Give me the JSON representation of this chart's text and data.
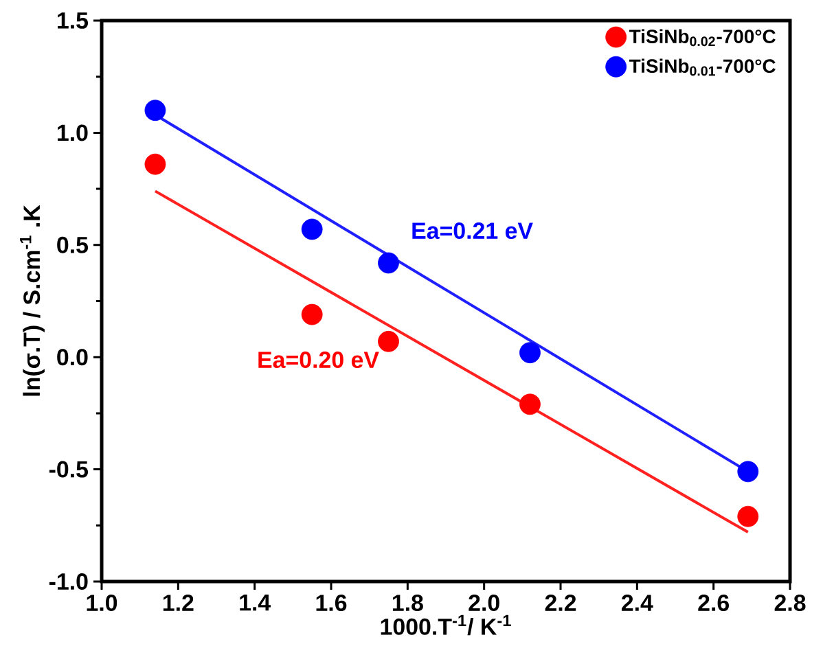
{
  "chart_data": {
    "type": "scatter",
    "xlabel": "1000.T$^{-1}$/ K$^{-1}$",
    "ylabel": "ln(σ.T) / S.cm$^{-1}$ .K",
    "xlim": [
      1.0,
      2.8
    ],
    "ylim": [
      -1.0,
      1.5
    ],
    "xticks": [
      {
        "value": 1.0,
        "label": "1.0"
      },
      1.2,
      1.4,
      1.6,
      1.8,
      {
        "value": 2.0,
        "label": "2.0"
      },
      2.2,
      2.4,
      2.6,
      2.8
    ],
    "yticks": [
      {
        "value": -1.0,
        "label": "-1.0"
      },
      -0.5,
      {
        "value": 0.0,
        "label": "0.0"
      },
      0.5,
      {
        "value": 1.0,
        "label": "1.0"
      },
      1.5
    ],
    "grid": false,
    "legend": "top right",
    "marker": "circle",
    "series": [
      {
        "name": "TiSiNb$_{0.02}$-700°C",
        "color": "#ff0000",
        "x": [
          1.14,
          1.55,
          1.75,
          2.12,
          2.69
        ],
        "values": [
          0.86,
          0.19,
          0.07,
          -0.21,
          -0.71
        ]
      },
      {
        "name": "TiSiNb$_{0.01}$-700°C",
        "color": "#0000ff",
        "x": [
          1.14,
          1.55,
          1.75,
          2.12,
          2.69
        ],
        "values": [
          1.1,
          0.57,
          0.42,
          0.02,
          -0.51
        ]
      },
      {
        "type": "line",
        "color": "#ff2020",
        "marker": "none",
        "x": [
          1.14,
          2.69
        ],
        "values": [
          0.74,
          -0.78
        ]
      },
      {
        "type": "line",
        "color": "#2020ff",
        "marker": "none",
        "x": [
          1.14,
          2.69
        ],
        "values": [
          1.08,
          -0.51
        ]
      }
    ],
    "annotations": [
      "Ea=0.20 eV",
      "Ea=0.21 eV"
    ]
  }
}
